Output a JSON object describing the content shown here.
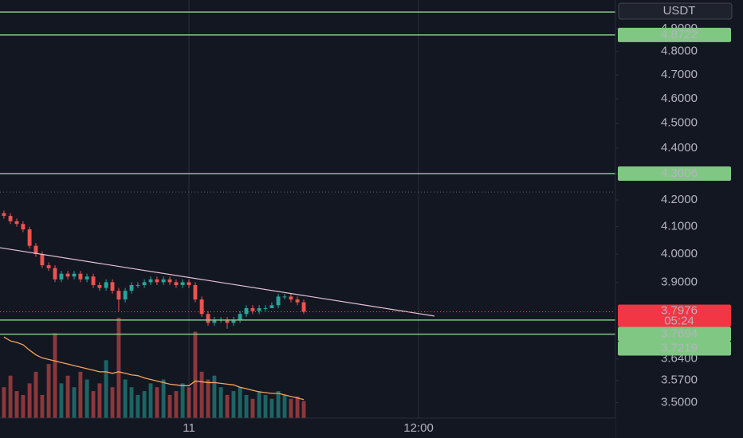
{
  "chart_data": {
    "type": "candlestick",
    "currency": "USDT",
    "log_scale": true,
    "x": [
      -9.67,
      -9.33,
      -9,
      -8.67,
      -8.33,
      -8,
      -7.67,
      -7.33,
      -7,
      -6.67,
      -6.33,
      -6,
      -5.67,
      -5.33,
      -5,
      -4.67,
      -4.33,
      -4,
      -3.67,
      -3.33,
      -3,
      -2.67,
      -2.33,
      -2,
      -1.67,
      -1.33,
      -1,
      -0.67,
      -0.33,
      0,
      0.33,
      0.67,
      1,
      1.33,
      1.67,
      2,
      2.33,
      2.67,
      3,
      3.33,
      3.67,
      4,
      4.33,
      4.67,
      5,
      5.33,
      5.67,
      6
    ],
    "open": [
      4.15,
      4.14,
      4.12,
      4.11,
      4.09,
      4.03,
      4.0,
      3.96,
      3.95,
      3.91,
      3.93,
      3.92,
      3.93,
      3.91,
      3.92,
      3.89,
      3.88,
      3.9,
      3.87,
      3.84,
      3.87,
      3.89,
      3.89,
      3.9,
      3.91,
      3.9,
      3.91,
      3.9,
      3.89,
      3.9,
      3.89,
      3.84,
      3.79,
      3.76,
      3.77,
      3.77,
      3.76,
      3.77,
      3.79,
      3.81,
      3.8,
      3.81,
      3.81,
      3.82,
      3.85,
      3.85,
      3.84,
      3.83
    ],
    "high": [
      4.16,
      4.15,
      4.13,
      4.12,
      4.1,
      4.04,
      4.01,
      3.97,
      3.96,
      3.94,
      3.94,
      3.94,
      3.94,
      3.93,
      3.93,
      3.9,
      3.91,
      3.91,
      3.88,
      3.88,
      3.9,
      3.9,
      3.91,
      3.92,
      3.92,
      3.92,
      3.92,
      3.91,
      3.91,
      3.91,
      3.9,
      3.85,
      3.8,
      3.78,
      3.78,
      3.78,
      3.78,
      3.8,
      3.82,
      3.82,
      3.82,
      3.82,
      3.83,
      3.86,
      3.86,
      3.86,
      3.85,
      3.84
    ],
    "low": [
      4.13,
      4.11,
      4.1,
      4.08,
      4.02,
      3.99,
      3.95,
      3.94,
      3.9,
      3.9,
      3.91,
      3.91,
      3.9,
      3.9,
      3.88,
      3.87,
      3.87,
      3.86,
      3.8,
      3.83,
      3.86,
      3.88,
      3.88,
      3.89,
      3.89,
      3.89,
      3.89,
      3.88,
      3.88,
      3.88,
      3.83,
      3.78,
      3.75,
      3.75,
      3.76,
      3.74,
      3.75,
      3.76,
      3.78,
      3.79,
      3.79,
      3.8,
      3.81,
      3.81,
      3.84,
      3.83,
      3.82,
      3.79
    ],
    "close": [
      4.14,
      4.12,
      4.11,
      4.09,
      4.03,
      4.0,
      3.96,
      3.95,
      3.91,
      3.93,
      3.92,
      3.93,
      3.91,
      3.92,
      3.89,
      3.88,
      3.9,
      3.87,
      3.84,
      3.87,
      3.89,
      3.89,
      3.9,
      3.91,
      3.9,
      3.91,
      3.9,
      3.89,
      3.9,
      3.89,
      3.84,
      3.79,
      3.76,
      3.77,
      3.77,
      3.76,
      3.77,
      3.79,
      3.81,
      3.8,
      3.81,
      3.81,
      3.82,
      3.85,
      3.85,
      3.84,
      3.83,
      3.7976
    ],
    "volumes": [
      40,
      55,
      35,
      30,
      45,
      60,
      30,
      70,
      110,
      45,
      55,
      40,
      60,
      50,
      35,
      45,
      75,
      40,
      130,
      50,
      40,
      30,
      35,
      45,
      40,
      50,
      30,
      35,
      45,
      40,
      112,
      60,
      50,
      55,
      40,
      30,
      35,
      40,
      30,
      25,
      35,
      30,
      25,
      35,
      30,
      25,
      28,
      22
    ],
    "volume_ma": [
      105,
      100,
      98,
      95,
      88,
      82,
      78,
      76,
      74,
      72,
      70,
      68,
      66,
      64,
      62,
      60,
      60,
      58,
      60,
      58,
      56,
      55,
      52,
      50,
      48,
      46,
      44,
      43,
      42,
      42,
      48,
      47,
      46,
      46,
      45,
      44,
      43,
      40,
      38,
      36,
      34,
      33,
      32,
      32,
      30,
      28,
      26,
      24
    ],
    "countdown": "05:24",
    "levels": {
      "values": [
        4.974,
        4.8722,
        4.3006,
        3.7694,
        3.7219
      ],
      "value_labels": [
        null,
        "4.8722",
        "4.3006",
        "3.7694",
        "3.7219"
      ],
      "color": "#81c784"
    },
    "dotted_level": 4.23,
    "trendline": {
      "x": [
        -9.875,
        12.83
      ],
      "y": [
        4.023,
        3.783
      ],
      "color": "#e6c3d6"
    },
    "up_color": "#26a69a",
    "down_color": "#ef5350",
    "volume_ma_color": "#f5a35c",
    "xlim": [
      -9.875,
      22.29
    ],
    "ylim": [
      3.451,
      5.028
    ],
    "xticks": [
      {
        "value": 0,
        "label": "11"
      },
      {
        "value": 12,
        "label": "12:00"
      }
    ],
    "yticks": [
      {
        "value": 4.9,
        "label": "4.9000"
      },
      {
        "value": 4.8,
        "label": "4.8000"
      },
      {
        "value": 4.7,
        "label": "4.7000"
      },
      {
        "value": 4.6,
        "label": "4.6000"
      },
      {
        "value": 4.5,
        "label": "4.5000"
      },
      {
        "value": 4.4,
        "label": "4.4000"
      },
      {
        "value": 4.3,
        "label": "4.3000"
      },
      {
        "value": 4.2,
        "label": "4.2000"
      },
      {
        "value": 4.1,
        "label": "4.1000"
      },
      {
        "value": 4.0,
        "label": "4.0000"
      },
      {
        "value": 3.9,
        "label": "3.9000"
      },
      {
        "value": 3.64,
        "label": "3.6400"
      },
      {
        "value": 3.57,
        "label": "3.5700"
      },
      {
        "value": 3.5,
        "label": "3.5000"
      }
    ]
  }
}
